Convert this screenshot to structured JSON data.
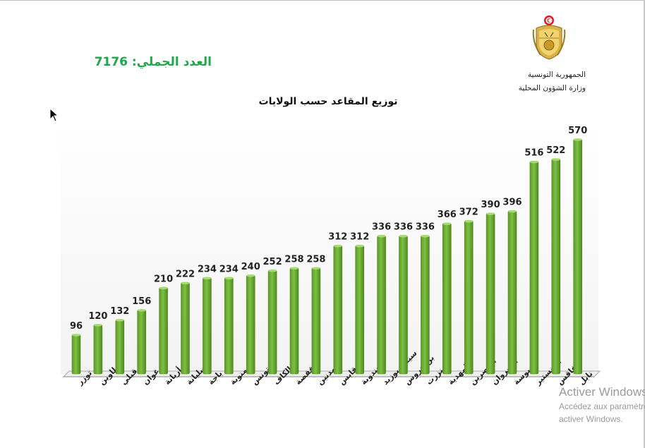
{
  "header": {
    "total_label": "العدد الجملي: 7176",
    "republic": "الجمهورية التونسية",
    "ministry": "وزارة الشؤون المحلية",
    "emblem_icon": "tunisia-coat-of-arms-icon"
  },
  "chart_data": {
    "type": "bar",
    "title": "توزيع المقاعد حسب الولايات",
    "xlabel": "",
    "ylabel": "",
    "ylim": [
      0,
      570
    ],
    "grid": false,
    "bar_color": "#7dc043",
    "bar_edge_color": "#4f8a1f",
    "categories": [
      "توزر",
      "تطاوين",
      "قبلي",
      "زغوان",
      "أريانة",
      "سليانة",
      "باجة",
      "منوبة",
      "تونس",
      "الكاف",
      "قفصة",
      "مدنين",
      "قابس",
      "جندوبة",
      "سيدي بوزيد",
      "بن عروس",
      "بنزرت",
      "المهدية",
      "القصرين",
      "القيروان",
      "سوسة",
      "المنستير",
      "صفاقس",
      "نابل"
    ],
    "values": [
      96,
      120,
      132,
      156,
      210,
      222,
      234,
      234,
      240,
      252,
      258,
      258,
      312,
      312,
      336,
      336,
      336,
      366,
      372,
      390,
      396,
      516,
      522,
      570
    ]
  },
  "overlay": {
    "activation_line1": "Activer Windows",
    "activation_line2": "Accédez aux paramètres pour",
    "activation_line3": "activer Windows.",
    "cursor_icon": "mouse-pointer-icon"
  }
}
